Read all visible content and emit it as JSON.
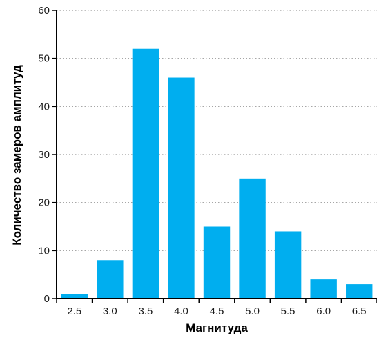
{
  "chart_data": {
    "type": "bar",
    "categories": [
      "2.5",
      "3.0",
      "3.5",
      "4.0",
      "4.5",
      "5.0",
      "5.5",
      "6.0",
      "6.5"
    ],
    "values": [
      1,
      8,
      52,
      46,
      15,
      25,
      14,
      4,
      3
    ],
    "title": "",
    "xlabel": "Магнитуда",
    "ylabel": "Количество замеров амплитуд",
    "ylim": [
      0,
      60
    ],
    "yticks": [
      0,
      10,
      20,
      30,
      40,
      50,
      60
    ],
    "grid": "horizontal-dotted",
    "bar_color": "#00aeef",
    "grid_color": "#9a9a9a",
    "axis_color": "#000000"
  }
}
